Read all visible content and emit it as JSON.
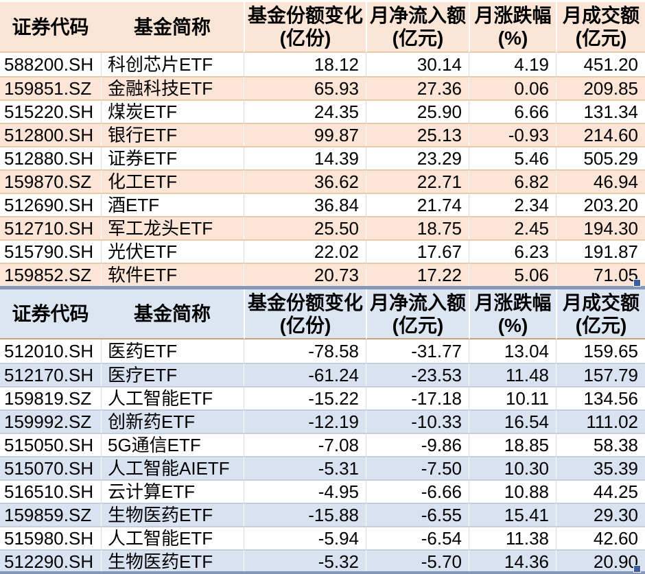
{
  "colors": {
    "text": "#000000",
    "t1_header_bg": "#fbe5d6",
    "t1_band_bg": "#fce4d6",
    "t1_border": "#e8c9a8",
    "t2_header_bg": "#dce6f3",
    "t2_band_bg": "#d9e2f0",
    "t2_border": "#c4cfdd",
    "t2_header_border": "#c9a27b",
    "grid_gray": "#d9d9d9",
    "separator": "#8496ba",
    "fill_handle": "#3c5ca2"
  },
  "tables": [
    {
      "id": "etf-monthly-inflow-top10",
      "theme": "orange",
      "columns": [
        {
          "label": "证券代码",
          "unit": ""
        },
        {
          "label": "基金简称",
          "unit": ""
        },
        {
          "label": "基金份额变化",
          "unit": "(亿份)"
        },
        {
          "label": "月净流入额",
          "unit": "(亿元)"
        },
        {
          "label": "月涨跌幅",
          "unit": "(%)"
        },
        {
          "label": "月成交额",
          "unit": "(亿元)"
        }
      ],
      "rows": [
        [
          "588200.SH",
          "科创芯片ETF",
          "18.12",
          "30.14",
          "4.19",
          "451.20"
        ],
        [
          "159851.SZ",
          "金融科技ETF",
          "65.93",
          "27.36",
          "0.06",
          "209.85"
        ],
        [
          "515220.SH",
          "煤炭ETF",
          "24.35",
          "25.90",
          "6.66",
          "131.34"
        ],
        [
          "512800.SH",
          "银行ETF",
          "99.87",
          "25.13",
          "-0.93",
          "214.60"
        ],
        [
          "512880.SH",
          "证券ETF",
          "14.39",
          "23.29",
          "5.46",
          "505.29"
        ],
        [
          "159870.SZ",
          "化工ETF",
          "36.62",
          "22.71",
          "6.82",
          "46.94"
        ],
        [
          "512690.SH",
          "酒ETF",
          "36.84",
          "21.74",
          "2.34",
          "203.20"
        ],
        [
          "512710.SH",
          "军工龙头ETF",
          "25.50",
          "18.75",
          "2.45",
          "194.30"
        ],
        [
          "515790.SH",
          "光伏ETF",
          "22.02",
          "17.67",
          "6.23",
          "191.87"
        ],
        [
          "159852.SZ",
          "软件ETF",
          "20.73",
          "17.22",
          "5.06",
          "71.05"
        ]
      ]
    },
    {
      "id": "etf-monthly-outflow-top10",
      "theme": "blue",
      "columns": [
        {
          "label": "证券代码",
          "unit": ""
        },
        {
          "label": "基金简称",
          "unit": ""
        },
        {
          "label": "基金份额变化",
          "unit": "(亿份)"
        },
        {
          "label": "月净流入额",
          "unit": "(亿元)"
        },
        {
          "label": "月涨跌幅",
          "unit": "(%)"
        },
        {
          "label": "月成交额",
          "unit": "(亿元)"
        }
      ],
      "rows": [
        [
          "512010.SH",
          "医药ETF",
          "-78.58",
          "-31.77",
          "13.04",
          "159.65"
        ],
        [
          "512170.SH",
          "医疗ETF",
          "-61.24",
          "-23.53",
          "11.48",
          "157.79"
        ],
        [
          "159819.SZ",
          "人工智能ETF",
          "-15.22",
          "-17.18",
          "10.11",
          "134.56"
        ],
        [
          "159992.SZ",
          "创新药ETF",
          "-12.19",
          "-10.33",
          "16.54",
          "111.02"
        ],
        [
          "515050.SH",
          "5G通信ETF",
          "-7.08",
          "-9.86",
          "18.85",
          "58.38"
        ],
        [
          "515070.SH",
          "人工智能AIETF",
          "-5.31",
          "-7.50",
          "10.30",
          "35.39"
        ],
        [
          "516510.SH",
          "云计算ETF",
          "-4.95",
          "-6.66",
          "10.88",
          "44.25"
        ],
        [
          "159859.SZ",
          "生物医药ETF",
          "-15.88",
          "-6.55",
          "15.41",
          "29.30"
        ],
        [
          "515980.SH",
          "人工智能ETF",
          "-5.94",
          "-6.54",
          "11.38",
          "42.60"
        ],
        [
          "512290.SH",
          "生物医药ETF",
          "-5.32",
          "-5.70",
          "14.36",
          "20.90"
        ]
      ]
    }
  ]
}
